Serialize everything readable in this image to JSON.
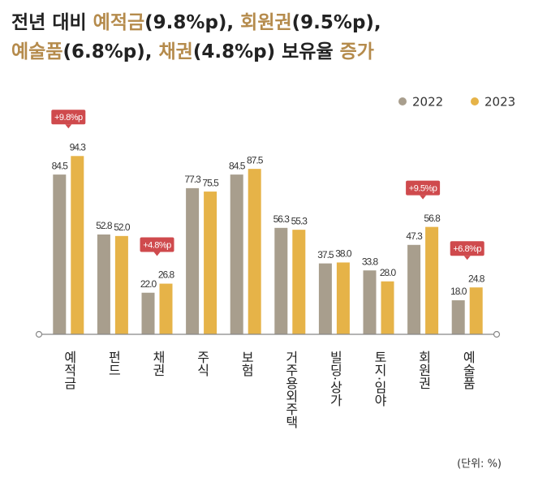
{
  "chart_data": {
    "type": "bar",
    "title_lines": [
      [
        {
          "text": "전년 대비 ",
          "highlight": false
        },
        {
          "text": "예적금",
          "highlight": true
        },
        {
          "text": "(9.8%p), ",
          "highlight": false
        },
        {
          "text": "회원권",
          "highlight": true
        },
        {
          "text": "(9.5%p),",
          "highlight": false
        }
      ],
      [
        {
          "text": "예술품",
          "highlight": true
        },
        {
          "text": "(6.8%p), ",
          "highlight": false
        },
        {
          "text": "채권",
          "highlight": true
        },
        {
          "text": "(4.8%p) 보유율 ",
          "highlight": false
        },
        {
          "text": "증가",
          "highlight": true
        }
      ]
    ],
    "highlight_color": "#b58b4c",
    "categories": [
      "예적금",
      "펀드",
      "채권",
      "주식",
      "보험",
      "거주용외주택",
      "빌딩·상가",
      "토지·임야",
      "회원권",
      "예술품"
    ],
    "series": [
      {
        "name": "2022",
        "color": "#a89e8d",
        "values": [
          84.5,
          52.8,
          22.0,
          77.3,
          84.5,
          56.3,
          37.5,
          33.8,
          47.3,
          18.0
        ],
        "value_labels": [
          "84.5",
          "52.8",
          "22.0",
          "77.3",
          "84.5",
          "56.3",
          "37.5",
          "33.8",
          "47.3",
          "18.0"
        ]
      },
      {
        "name": "2023",
        "color": "#e6b348",
        "values": [
          94.3,
          52.0,
          26.8,
          75.5,
          87.5,
          55.3,
          38.0,
          28.0,
          56.8,
          24.8
        ],
        "value_labels": [
          "94.3",
          "52.0",
          "26.8",
          "75.5",
          "87.5",
          "55.3",
          "38.0",
          "28.0",
          "56.8",
          "24.8"
        ]
      }
    ],
    "annotations": [
      "+9.8%p",
      null,
      "+4.8%p",
      null,
      null,
      null,
      null,
      null,
      "+9.5%p",
      "+6.8%p"
    ],
    "annotation_color": "#cf4a4d",
    "unit_note": "(단위: %)",
    "ylim": [
      0,
      100
    ],
    "legend": "top-right"
  }
}
